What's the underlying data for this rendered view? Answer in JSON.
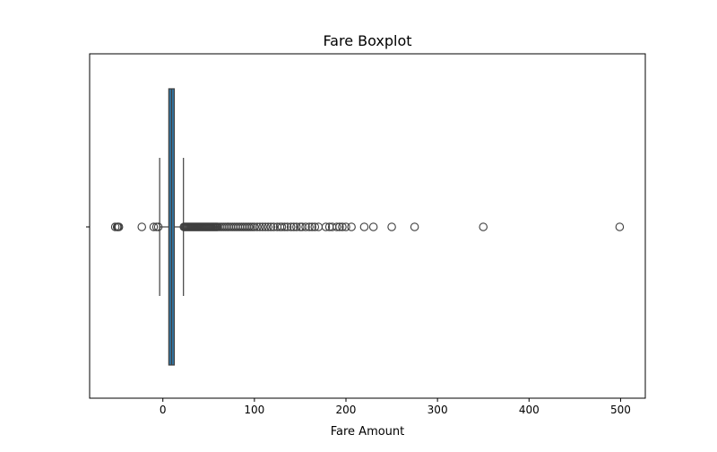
{
  "chart_data": {
    "type": "boxplot",
    "title": "Fare Boxplot",
    "xlabel": "Fare Amount",
    "ylabel": "",
    "orientation": "horizontal",
    "xlim": [
      -80,
      527
    ],
    "xticks": [
      0,
      100,
      200,
      300,
      400,
      500
    ],
    "grid": false,
    "legend": "none",
    "box": {
      "color": "#3274a1",
      "edge_color": "#3f3f3f",
      "whisker_low": -3.5,
      "q1": 6.5,
      "median": 9.5,
      "q3": 12.5,
      "whisker_high": 22.5
    },
    "outliers": [
      -52,
      -50,
      -49,
      -48,
      -23,
      -10,
      -7,
      -5,
      23,
      24,
      25,
      26,
      27,
      28,
      29,
      30,
      31,
      32,
      33,
      34,
      35,
      36,
      37,
      38,
      39,
      40,
      41,
      42,
      43,
      44,
      45,
      46,
      47,
      48,
      49,
      50,
      51,
      52,
      53,
      54,
      55,
      56,
      57,
      58,
      59,
      60,
      62,
      64,
      66,
      68,
      70,
      72,
      74,
      76,
      78,
      80,
      82,
      84,
      86,
      88,
      90,
      92,
      94,
      96,
      98,
      100,
      103,
      106,
      109,
      112,
      115,
      118,
      121,
      125,
      128,
      130,
      133,
      136,
      140,
      143,
      146,
      150,
      152,
      156,
      160,
      163,
      166,
      170,
      178,
      182,
      185,
      190,
      193,
      196,
      200,
      206,
      220,
      230,
      250,
      275,
      350,
      499
    ]
  }
}
